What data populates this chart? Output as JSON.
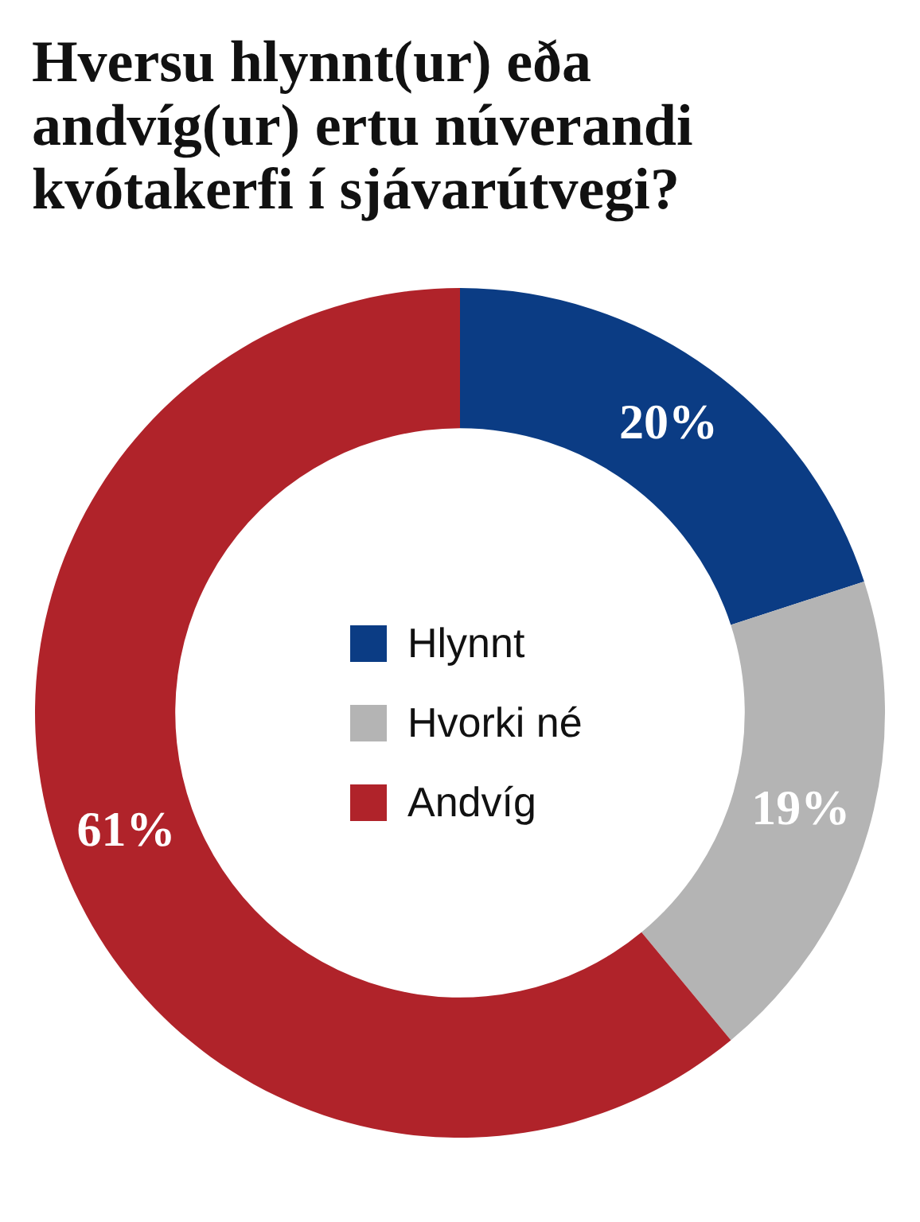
{
  "chart_data": {
    "type": "donut",
    "title": "Hversu hlynnt(ur) eða andvíg(ur) ertu núverandi kvótakerfi í sjávarútvegi?",
    "categories": [
      "Hlynnt",
      "Hvorki né",
      "Andvíg"
    ],
    "values": [
      20,
      19,
      61
    ],
    "colors": [
      "#0b3c84",
      "#b4b4b4",
      "#b0232a"
    ],
    "value_labels": [
      "20%",
      "19%",
      "61%"
    ],
    "legend": "center"
  }
}
